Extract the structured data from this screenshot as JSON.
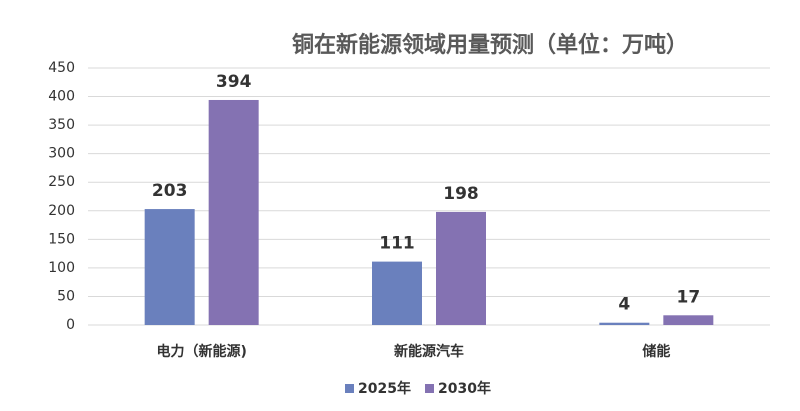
{
  "chart_data": {
    "type": "bar",
    "title": "铜在新能源领域用量预测（单位：万吨）",
    "categories": [
      "电力（新能源)",
      "新能源汽车",
      "储能"
    ],
    "series": [
      {
        "name": "2025年",
        "color": "#6a80bd",
        "values": [
          203,
          111,
          4
        ]
      },
      {
        "name": "2030年",
        "color": "#8472b2",
        "values": [
          394,
          198,
          17
        ]
      }
    ],
    "ylim": [
      0,
      450
    ],
    "yticks": [
      0,
      50,
      100,
      150,
      200,
      250,
      300,
      350,
      400,
      450
    ],
    "grid": true,
    "legend": "bottom"
  }
}
